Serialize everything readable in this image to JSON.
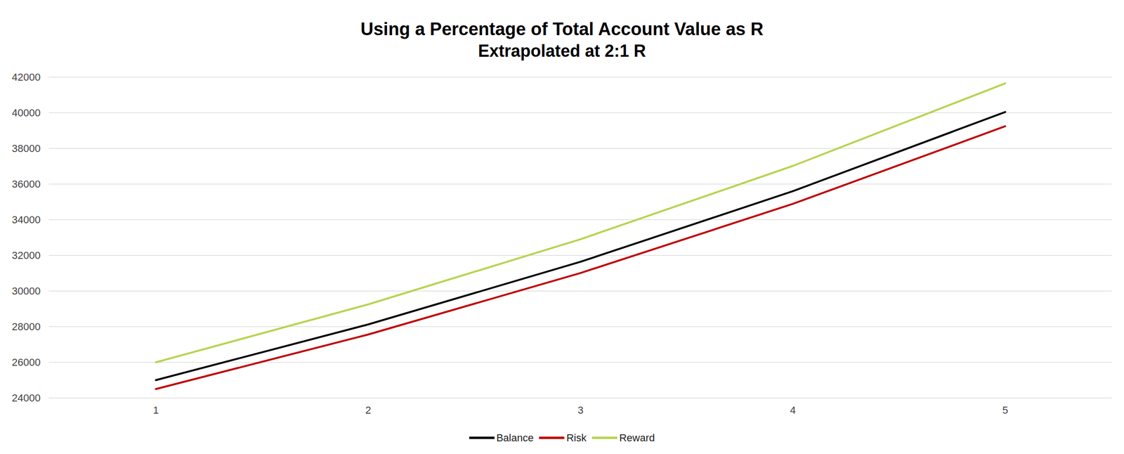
{
  "chart_data": {
    "type": "line",
    "title": "Using a Percentage of Total Account Value as R",
    "subtitle": "Extrapolated at 2:1 R",
    "categories": [
      "1",
      "2",
      "3",
      "4",
      "5"
    ],
    "series": [
      {
        "name": "Balance",
        "color": "#000000",
        "values": [
          25000,
          28125,
          31640,
          35600,
          40045
        ]
      },
      {
        "name": "Risk",
        "color": "#c00000",
        "values": [
          24500,
          27560,
          31010,
          34890,
          39245
        ]
      },
      {
        "name": "Reward",
        "color": "#b6d44e",
        "values": [
          26000,
          29250,
          32905,
          37020,
          41650
        ]
      }
    ],
    "ylim": [
      24000,
      42000
    ],
    "yticks": [
      24000,
      26000,
      28000,
      30000,
      32000,
      34000,
      36000,
      38000,
      40000,
      42000
    ],
    "grid": true,
    "legend": "bottom"
  }
}
